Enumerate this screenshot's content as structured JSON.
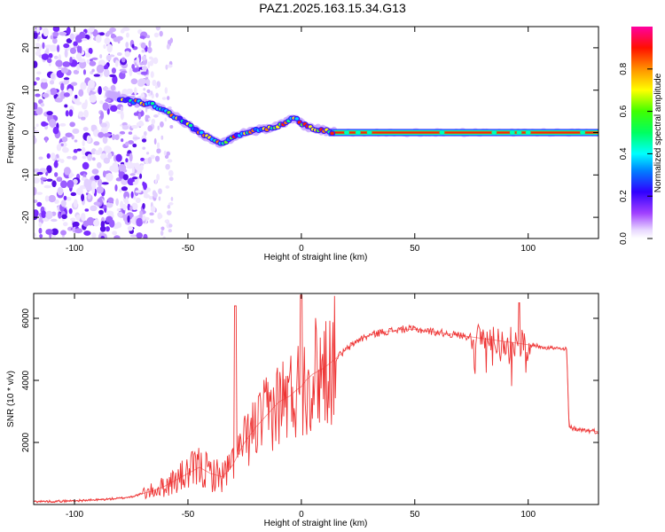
{
  "title": "PAZ1.2025.163.15.34.G13",
  "chart_data": [
    {
      "type": "heatmap",
      "xlabel": "Height of straight line (km)",
      "ylabel": "Frequency (Hz)",
      "xlim": [
        -118,
        131
      ],
      "ylim": [
        -25,
        25
      ],
      "xticks": [
        -100,
        -50,
        0,
        50,
        100
      ],
      "yticks": [
        -20,
        -10,
        0,
        10,
        20
      ],
      "colorbar": {
        "label": "Normalized spectral amplitude",
        "range": [
          0,
          1
        ],
        "ticks": [
          "0.0",
          "0.2",
          "0.4",
          "0.6",
          "0.8"
        ],
        "colormap": "rainbow (white/violet → blue → cyan → green → yellow → red → magenta)"
      },
      "ridge": {
        "x": [
          -118,
          -100,
          -90,
          -80,
          -75,
          -70,
          -65,
          -60,
          -55,
          -50,
          -45,
          -40,
          -35,
          -30,
          -25,
          -20,
          -15,
          -10,
          -5,
          -3,
          0,
          5,
          10,
          15,
          20,
          40,
          60,
          80,
          100,
          131
        ],
        "y": [
          12,
          11,
          10,
          8,
          7.5,
          7,
          6.5,
          5,
          3.5,
          2,
          0,
          -1.5,
          -2.5,
          -1,
          0,
          0.5,
          1,
          1.5,
          3,
          3.5,
          2,
          1,
          0.5,
          0,
          0,
          0,
          0,
          0,
          0,
          0
        ]
      },
      "noise_below_km": -70
    },
    {
      "type": "line",
      "xlabel": "Height of straight line (km)",
      "ylabel": "SNR (10 * v/v)",
      "xlim": [
        -118,
        131
      ],
      "ylim": [
        0,
        6800
      ],
      "xticks": [
        -100,
        -50,
        0,
        50,
        100
      ],
      "yticks": [
        2000,
        4000,
        6000
      ],
      "series": [
        {
          "color": "#ee3333",
          "x": [
            -118,
            -110,
            -100,
            -90,
            -80,
            -75,
            -70,
            -65,
            -60,
            -55,
            -50,
            -45,
            -40,
            -35,
            -32,
            -30,
            -28,
            -25,
            -20,
            -15,
            -10,
            -5,
            -2,
            0,
            2,
            5,
            10,
            15,
            20,
            25,
            30,
            35,
            40,
            45,
            50,
            55,
            60,
            65,
            70,
            75,
            80,
            85,
            90,
            95,
            100,
            105,
            110,
            115,
            117,
            118,
            120,
            125,
            131
          ],
          "y": [
            100,
            100,
            120,
            150,
            200,
            250,
            350,
            450,
            600,
            800,
            1000,
            1200,
            1000,
            900,
            1100,
            1300,
            1600,
            2000,
            2500,
            2900,
            3300,
            3500,
            3700,
            3800,
            4000,
            4200,
            4400,
            4700,
            5000,
            5300,
            5450,
            5550,
            5600,
            5650,
            5650,
            5600,
            5550,
            5500,
            5450,
            5400,
            5350,
            5300,
            5250,
            5200,
            5150,
            5100,
            5050,
            5000,
            5000,
            2500,
            2450,
            2400,
            2350
          ]
        }
      ]
    }
  ]
}
